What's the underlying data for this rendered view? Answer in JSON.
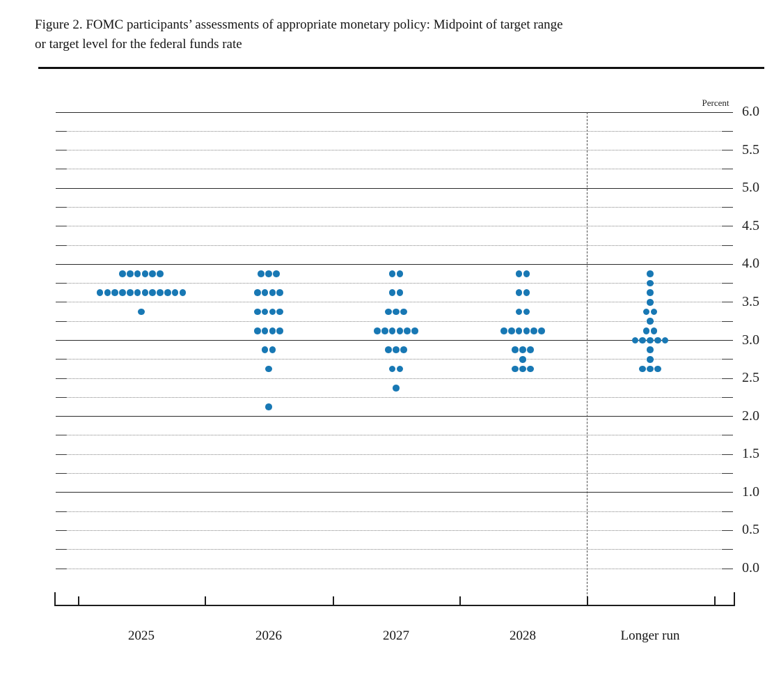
{
  "figure": {
    "title_line1": "Figure 2. FOMC participants’ assessments of appropriate monetary policy: Midpoint of target range",
    "title_line2": "or target level for the federal funds rate",
    "unit_label": "Percent"
  },
  "chart_data": {
    "type": "scatter",
    "title": "FOMC participants’ assessments of appropriate monetary policy: Midpoint of target range or target level for the federal funds rate",
    "ylabel": "Percent",
    "ylim": [
      0.0,
      6.0
    ],
    "y_axis_labels": [
      "6.0",
      "5.5",
      "5.0",
      "4.5",
      "4.0",
      "3.5",
      "3.0",
      "2.5",
      "2.0",
      "1.5",
      "1.0",
      "0.5",
      "0.0"
    ],
    "grid": "dotted lines at each 0.25 with end dashes; solid lines at integers 1.0-6.0; dashed vertical divider before Longer run",
    "legend_position": "none",
    "dot_color": "#1878b4",
    "categories": [
      "2025",
      "2026",
      "2027",
      "2028",
      "Longer run"
    ],
    "series": [
      {
        "name": "2025",
        "dots": {
          "3.875": 6,
          "3.625": 12,
          "3.375": 1
        }
      },
      {
        "name": "2026",
        "dots": {
          "3.875": 3,
          "3.625": 4,
          "3.375": 4,
          "3.125": 4,
          "2.875": 2,
          "2.625": 1,
          "2.125": 1
        }
      },
      {
        "name": "2027",
        "dots": {
          "3.875": 2,
          "3.625": 2,
          "3.375": 3,
          "3.125": 6,
          "2.875": 3,
          "2.625": 2,
          "2.375": 1
        }
      },
      {
        "name": "2028",
        "dots": {
          "3.875": 2,
          "3.625": 2,
          "3.375": 2,
          "3.125": 6,
          "2.875": 3,
          "2.75": 1,
          "2.625": 3
        }
      },
      {
        "name": "Longer run",
        "dots": {
          "3.875": 1,
          "3.75": 1,
          "3.625": 1,
          "3.5": 1,
          "3.375": 2,
          "3.25": 1,
          "3.125": 2,
          "3.0": 5,
          "2.875": 1,
          "2.75": 1,
          "2.625": 3
        }
      }
    ]
  }
}
